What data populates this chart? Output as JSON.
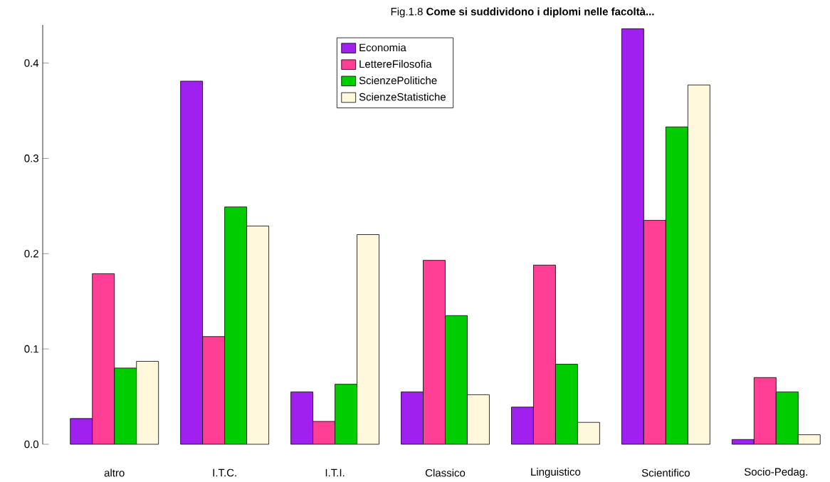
{
  "chart_data": {
    "type": "bar",
    "title": "Fig.1.8 **Come si suddividono i diplomi nelle facoltà...**",
    "categories": [
      "altro",
      "I.T.C.",
      "I.T.I.",
      "Classico",
      "Linguistico",
      "Scientifico",
      "Socio-Pedag."
    ],
    "series": [
      {
        "name": "Economia",
        "color": "#a020f0",
        "values": [
          0.027,
          0.381,
          0.055,
          0.055,
          0.039,
          0.436,
          0.005
        ]
      },
      {
        "name": "LettereFilosofia",
        "color": "#ff3e96",
        "values": [
          0.179,
          0.113,
          0.024,
          0.193,
          0.188,
          0.235,
          0.07
        ]
      },
      {
        "name": "ScienzePolitiche",
        "color": "#00cd00",
        "values": [
          0.08,
          0.249,
          0.063,
          0.135,
          0.084,
          0.333,
          0.055
        ]
      },
      {
        "name": "ScienzeStatistiche",
        "color": "#fff8dc",
        "values": [
          0.087,
          0.229,
          0.22,
          0.052,
          0.023,
          0.377,
          0.01
        ]
      }
    ],
    "ylim": [
      0,
      0.44
    ],
    "yticks": [
      {
        "value": 0,
        "label": "0.0"
      },
      0.1,
      0.2,
      0.3,
      0.4
    ],
    "legend": "top"
  }
}
